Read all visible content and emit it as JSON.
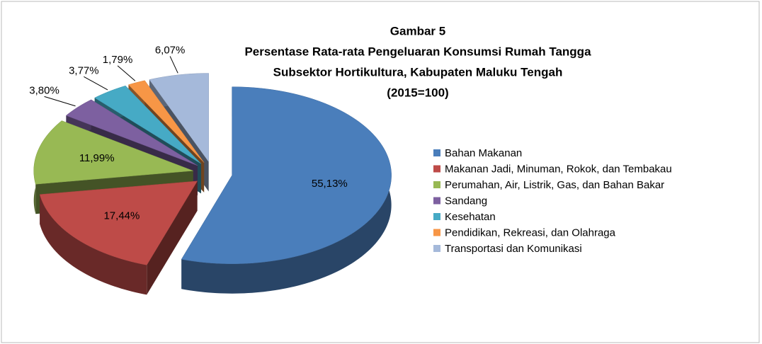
{
  "chart_data": {
    "type": "pie",
    "title": [
      "Gambar 5",
      "Persentase Rata-rata Pengeluaran Konsumsi Rumah Tangga",
      "Subsektor Hortikultura, Kabupaten Maluku Tengah",
      "(2015=100)"
    ],
    "categories": [
      "Bahan Makanan",
      "Makanan Jadi, Minuman, Rokok, dan Tembakau",
      "Perumahan, Air, Listrik, Gas, dan Bahan Bakar",
      "Sandang",
      "Kesehatan",
      "Pendidikan, Rekreasi, dan Olahraga",
      "Transportasi dan Komunikasi"
    ],
    "values": [
      55.13,
      17.44,
      11.99,
      3.8,
      3.77,
      1.79,
      6.07
    ],
    "value_labels": [
      "55,13%",
      "17,44%",
      "11,99%",
      "3,80%",
      "3,77%",
      "1,79%",
      "6,07%"
    ],
    "colors": [
      "#4a7ebb",
      "#be4b48",
      "#98b954",
      "#7d60a0",
      "#46aac5",
      "#f79646",
      "#a5b9da"
    ],
    "legend": "right"
  }
}
